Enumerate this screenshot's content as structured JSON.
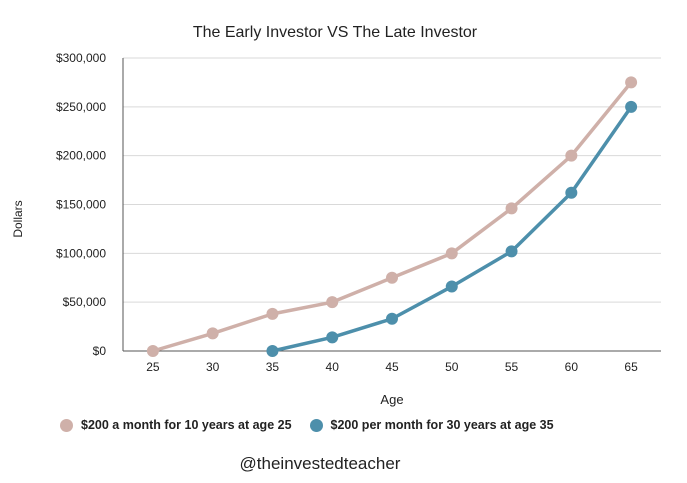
{
  "chart_data": {
    "type": "line",
    "title": "The Early Investor VS The Late Investor",
    "xlabel": "Age",
    "ylabel": "Dollars",
    "x": [
      25,
      30,
      35,
      40,
      45,
      50,
      55,
      60,
      65
    ],
    "ylim": [
      0,
      300000
    ],
    "y_ticks": [
      0,
      50000,
      100000,
      150000,
      200000,
      250000,
      300000
    ],
    "y_tick_labels": [
      "$0",
      "$50,000",
      "$100,000",
      "$150,000",
      "$200,000",
      "$250,000",
      "$300,000"
    ],
    "x_tick_labels": [
      "25",
      "30",
      "35",
      "40",
      "45",
      "50",
      "55",
      "60",
      "65"
    ],
    "grid": true,
    "legend_position": "bottom",
    "series": [
      {
        "name": "$200 a month for 10 years at age 25",
        "color": "#cfb0a9",
        "values": [
          0,
          18000,
          38000,
          50000,
          75000,
          100000,
          146000,
          200000,
          275000
        ]
      },
      {
        "name": "$200 per month for 30 years at age 35",
        "color": "#4d8fab",
        "values": [
          null,
          null,
          0,
          14000,
          33000,
          66000,
          102000,
          162000,
          250000
        ]
      }
    ]
  },
  "watermark": "@theinvestedteacher"
}
